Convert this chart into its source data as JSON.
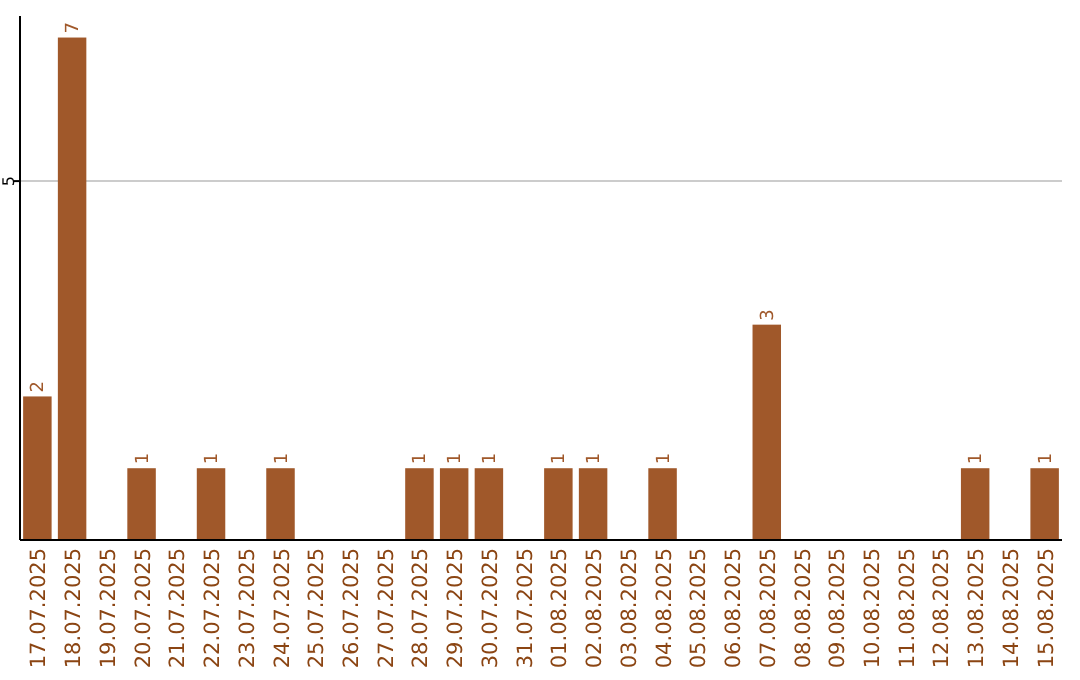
{
  "chart_data": {
    "type": "bar",
    "categories": [
      "17.07.2025",
      "18.07.2025",
      "19.07.2025",
      "20.07.2025",
      "21.07.2025",
      "22.07.2025",
      "23.07.2025",
      "24.07.2025",
      "25.07.2025",
      "26.07.2025",
      "27.07.2025",
      "28.07.2025",
      "29.07.2025",
      "30.07.2025",
      "31.07.2025",
      "01.08.2025",
      "02.08.2025",
      "03.08.2025",
      "04.08.2025",
      "05.08.2025",
      "06.08.2025",
      "07.08.2025",
      "08.08.2025",
      "09.08.2025",
      "10.08.2025",
      "11.08.2025",
      "12.08.2025",
      "13.08.2025",
      "14.08.2025",
      "15.08.2025"
    ],
    "values": [
      2,
      7,
      null,
      1,
      null,
      1,
      null,
      1,
      null,
      null,
      null,
      1,
      1,
      1,
      null,
      1,
      1,
      null,
      1,
      null,
      null,
      3,
      null,
      null,
      null,
      null,
      null,
      1,
      null,
      1
    ],
    "color": "#a0582a",
    "ylim": [
      0,
      7.3
    ],
    "yticks": [
      5
    ],
    "grid": "y",
    "data_labels": true
  }
}
